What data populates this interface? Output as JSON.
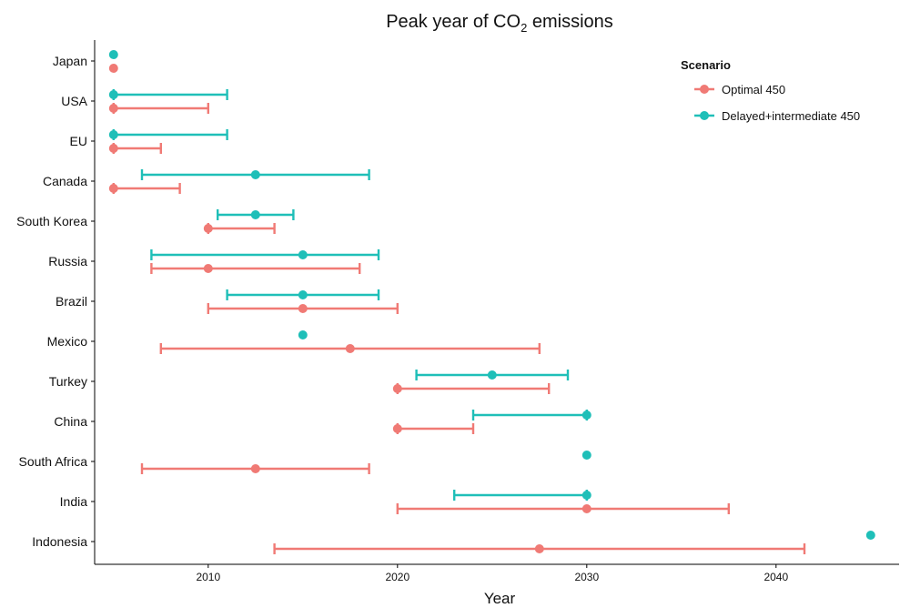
{
  "chart_data": {
    "type": "errorbar",
    "title": "Peak year of CO",
    "title_sub": "2",
    "title_suffix": " emissions",
    "xlabel": "Year",
    "ylabel": "",
    "xlim": [
      2004,
      2046.5
    ],
    "xticks": [
      2010,
      2020,
      2030,
      2040
    ],
    "grid": false,
    "legend_position": "top-right",
    "legend_title": "Scenario",
    "categories": [
      "Japan",
      "USA",
      "EU",
      "Canada",
      "South Korea",
      "Russia",
      "Brazil",
      "Mexico",
      "Turkey",
      "China",
      "South Africa",
      "India",
      "Indonesia"
    ],
    "series": [
      {
        "name": "Optimal 450",
        "color": "#f07a75",
        "points": [
          {
            "y": "Japan",
            "x": 2005,
            "low": null,
            "high": null
          },
          {
            "y": "USA",
            "x": 2005,
            "low": 2005,
            "high": 2010
          },
          {
            "y": "EU",
            "x": 2005,
            "low": 2005,
            "high": 2007.5
          },
          {
            "y": "Canada",
            "x": 2005,
            "low": 2005,
            "high": 2008.5
          },
          {
            "y": "South Korea",
            "x": 2010,
            "low": 2010,
            "high": 2013.5
          },
          {
            "y": "Russia",
            "x": 2010,
            "low": 2007,
            "high": 2018
          },
          {
            "y": "Brazil",
            "x": 2015,
            "low": 2010,
            "high": 2020
          },
          {
            "y": "Mexico",
            "x": 2017.5,
            "low": 2007.5,
            "high": 2027.5
          },
          {
            "y": "Turkey",
            "x": 2020,
            "low": 2020,
            "high": 2028
          },
          {
            "y": "China",
            "x": 2020,
            "low": 2020,
            "high": 2024
          },
          {
            "y": "South Africa",
            "x": 2012.5,
            "low": 2006.5,
            "high": 2018.5
          },
          {
            "y": "India",
            "x": 2030,
            "low": 2020,
            "high": 2037.5
          },
          {
            "y": "Indonesia",
            "x": 2027.5,
            "low": 2013.5,
            "high": 2041.5
          }
        ]
      },
      {
        "name": "Delayed+intermediate 450",
        "color": "#1fbfb8",
        "points": [
          {
            "y": "Japan",
            "x": 2005,
            "low": null,
            "high": null
          },
          {
            "y": "USA",
            "x": 2005,
            "low": 2005,
            "high": 2011
          },
          {
            "y": "EU",
            "x": 2005,
            "low": 2005,
            "high": 2011
          },
          {
            "y": "Canada",
            "x": 2012.5,
            "low": 2006.5,
            "high": 2018.5
          },
          {
            "y": "South Korea",
            "x": 2012.5,
            "low": 2010.5,
            "high": 2014.5
          },
          {
            "y": "Russia",
            "x": 2015,
            "low": 2007,
            "high": 2019
          },
          {
            "y": "Brazil",
            "x": 2015,
            "low": 2011,
            "high": 2019
          },
          {
            "y": "Mexico",
            "x": 2015,
            "low": null,
            "high": null
          },
          {
            "y": "Turkey",
            "x": 2025,
            "low": 2021,
            "high": 2029
          },
          {
            "y": "China",
            "x": 2030,
            "low": 2024,
            "high": 2030
          },
          {
            "y": "South Africa",
            "x": 2030,
            "low": null,
            "high": null
          },
          {
            "y": "India",
            "x": 2030,
            "low": 2023,
            "high": 2030
          },
          {
            "y": "Indonesia",
            "x": 2045,
            "low": null,
            "high": null
          }
        ]
      }
    ]
  }
}
